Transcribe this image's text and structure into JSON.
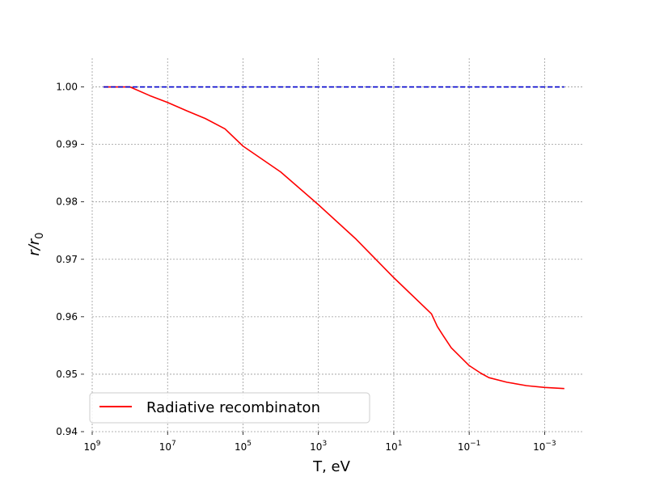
{
  "chart_data": {
    "type": "line",
    "title": "",
    "xlabel": "T, eV",
    "ylabel": "r/r0",
    "ylabel_parts": {
      "base": "r/r",
      "sub": "0"
    },
    "x_scale": "log",
    "x_axis_reversed": true,
    "xlim": [
      1000000000.0,
      0.0001
    ],
    "ylim": [
      0.94,
      1.005
    ],
    "x_ticks": [
      {
        "value": 1000000000.0,
        "base": "10",
        "exp": "9"
      },
      {
        "value": 10000000.0,
        "base": "10",
        "exp": "7"
      },
      {
        "value": 100000.0,
        "base": "10",
        "exp": "5"
      },
      {
        "value": 1000.0,
        "base": "10",
        "exp": "3"
      },
      {
        "value": 10.0,
        "base": "10",
        "exp": "1"
      },
      {
        "value": 0.1,
        "base": "10",
        "exp": "−1"
      },
      {
        "value": 0.001,
        "base": "10",
        "exp": "−3"
      }
    ],
    "y_ticks": [
      {
        "value": 0.94,
        "label": "0.94"
      },
      {
        "value": 0.95,
        "label": "0.95"
      },
      {
        "value": 0.96,
        "label": "0.96"
      },
      {
        "value": 0.97,
        "label": "0.97"
      },
      {
        "value": 0.98,
        "label": "0.98"
      },
      {
        "value": 0.99,
        "label": "0.99"
      },
      {
        "value": 1.0,
        "label": "1.00"
      }
    ],
    "grid": true,
    "legend": {
      "position": "lower-left",
      "entries": [
        {
          "series_index": 0,
          "label": "Radiative recombinaton"
        }
      ]
    },
    "series": [
      {
        "name": "Radiative recombinaton",
        "color": "#ff0000",
        "style": "solid",
        "points": [
          {
            "x": 500000000.0,
            "y": 1.0
          },
          {
            "x": 300000000.0,
            "y": 1.0
          },
          {
            "x": 100000000.0,
            "y": 1.0
          },
          {
            "x": 30000000.0,
            "y": 0.9985
          },
          {
            "x": 10000000.0,
            "y": 0.9973
          },
          {
            "x": 3000000.0,
            "y": 0.9958
          },
          {
            "x": 1000000.0,
            "y": 0.9945
          },
          {
            "x": 300000.0,
            "y": 0.9927
          },
          {
            "x": 100000.0,
            "y": 0.9897
          },
          {
            "x": 10000.0,
            "y": 0.9852
          },
          {
            "x": 1000.0,
            "y": 0.9795
          },
          {
            "x": 100.0,
            "y": 0.9735
          },
          {
            "x": 10.0,
            "y": 0.9668
          },
          {
            "x": 1.0,
            "y": 0.9605
          },
          {
            "x": 0.7,
            "y": 0.9583
          },
          {
            "x": 0.5,
            "y": 0.9568
          },
          {
            "x": 0.3,
            "y": 0.9546
          },
          {
            "x": 0.1,
            "y": 0.9515
          },
          {
            "x": 0.05,
            "y": 0.9502
          },
          {
            "x": 0.03,
            "y": 0.9494
          },
          {
            "x": 0.01,
            "y": 0.9486
          },
          {
            "x": 0.003,
            "y": 0.948
          },
          {
            "x": 0.001,
            "y": 0.9477
          },
          {
            "x": 0.0003,
            "y": 0.9475
          }
        ]
      },
      {
        "name": "",
        "color": "#0000cc",
        "style": "dashed",
        "points": [
          {
            "x": 500000000.0,
            "y": 1.0
          },
          {
            "x": 0.0003,
            "y": 1.0
          }
        ]
      }
    ]
  }
}
